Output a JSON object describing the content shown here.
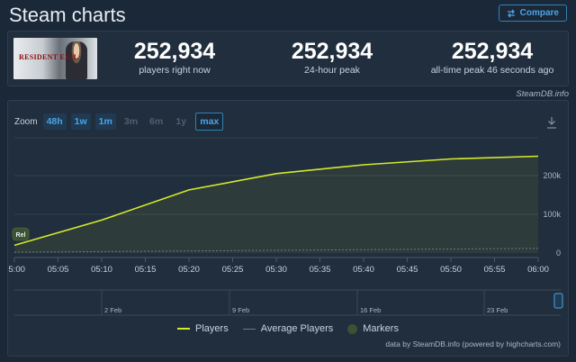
{
  "header": {
    "title": "Steam charts",
    "compare_label": "Compare"
  },
  "game": {
    "thumbnail_text": "RESIDENT EVIL"
  },
  "stats": [
    {
      "value": "252,934",
      "label": "players right now"
    },
    {
      "value": "252,934",
      "label": "24-hour peak"
    },
    {
      "value": "252,934",
      "label": "all-time peak 46 seconds ago"
    }
  ],
  "credit_top": "SteamDB.info",
  "zoom": {
    "label": "Zoom",
    "options": [
      {
        "label": "48h",
        "state": "enabled"
      },
      {
        "label": "1w",
        "state": "enabled"
      },
      {
        "label": "1m",
        "state": "enabled"
      },
      {
        "label": "3m",
        "state": "disabled"
      },
      {
        "label": "6m",
        "state": "disabled"
      },
      {
        "label": "1y",
        "state": "disabled"
      },
      {
        "label": "max",
        "state": "active"
      }
    ]
  },
  "chart_data": {
    "type": "line",
    "x_labels": [
      "05:00",
      "05:05",
      "05:10",
      "05:15",
      "05:20",
      "05:25",
      "05:30",
      "05:35",
      "05:40",
      "05:45",
      "05:50",
      "05:55",
      "06:00"
    ],
    "y_ticks": [
      0,
      100000,
      200000
    ],
    "y_tick_labels": [
      "0",
      "100k",
      "200k"
    ],
    "ylim": [
      0,
      300000
    ],
    "series": [
      {
        "name": "Players",
        "color": "#d4ea2b",
        "x": [
          "05:00",
          "05:10",
          "05:20",
          "05:30",
          "05:40",
          "05:50",
          "06:00"
        ],
        "values": [
          20000,
          85000,
          163000,
          205000,
          228000,
          243000,
          250000
        ]
      },
      {
        "name": "Average Players",
        "color": "#6b7a88",
        "x": [
          "05:00",
          "06:00"
        ],
        "values": [
          2000,
          12000
        ]
      }
    ],
    "markers": [
      {
        "label": "Rel",
        "x": "05:00"
      }
    ],
    "navigator_labels": [
      "2 Feb",
      "9 Feb",
      "16 Feb",
      "23 Feb"
    ],
    "legend": [
      {
        "name": "Players",
        "color": "#d4ea2b",
        "symbol": "line"
      },
      {
        "name": "Average Players",
        "color": "#6b7a88",
        "symbol": "line"
      },
      {
        "name": "Markers",
        "color": "#3b5233",
        "symbol": "dot"
      }
    ],
    "grid": true,
    "legend_position": "bottom-center"
  },
  "credit_bottom": "data by SteamDB.info (powered by highcharts.com)"
}
